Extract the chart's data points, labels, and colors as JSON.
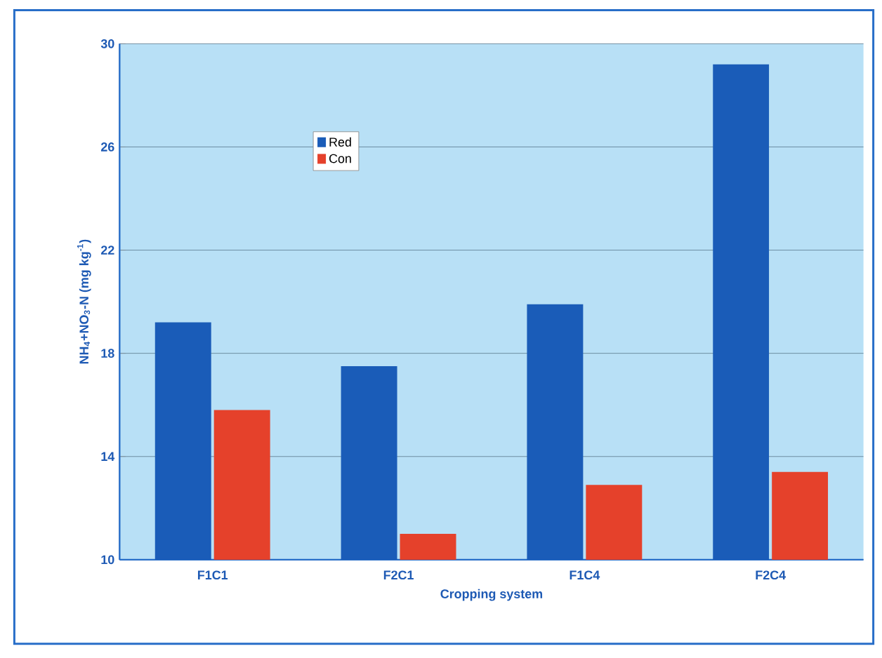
{
  "chart_data": {
    "type": "bar",
    "xlabel": "Cropping system",
    "ylabel": "NH$_{4}$+NO$_{3}$-N (mg kg$^{-1}$)",
    "categories": [
      "F1C1",
      "F2C1",
      "F1C4",
      "F2C4"
    ],
    "series": [
      {
        "name": "Red",
        "color": "#1a5cb8",
        "values": [
          19.2,
          17.5,
          19.9,
          29.2
        ]
      },
      {
        "name": "Con",
        "color": "#e5412b",
        "values": [
          15.8,
          11.0,
          12.9,
          13.4
        ]
      }
    ],
    "ylim": [
      10,
      30
    ],
    "yticks": [
      10,
      14,
      18,
      22,
      26,
      30
    ],
    "grid": "y",
    "legend": "top left"
  }
}
